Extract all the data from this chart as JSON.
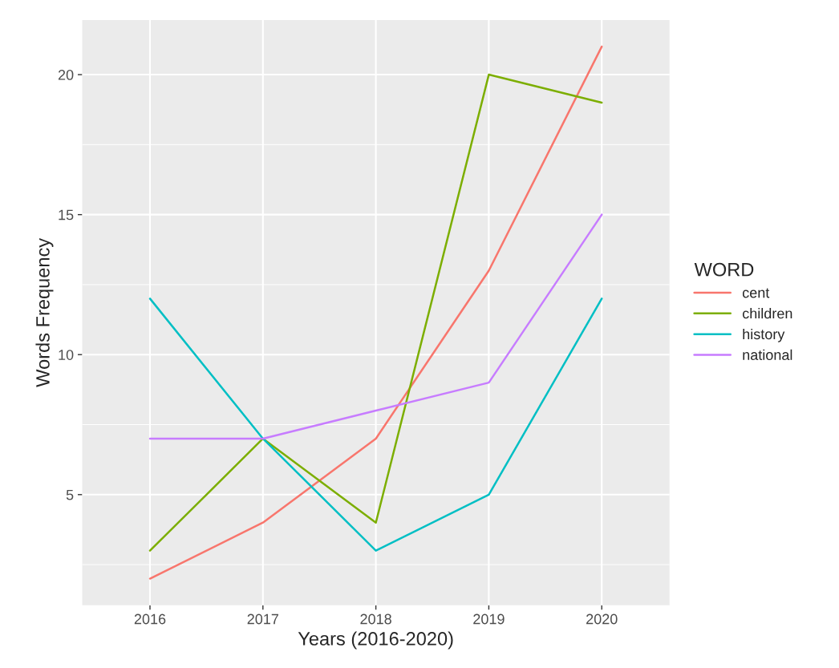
{
  "chart_data": {
    "type": "line",
    "xlabel": "Years (2016-2020)",
    "ylabel": "Words Frequency",
    "legend_title": "WORD",
    "x": [
      2016,
      2017,
      2018,
      2019,
      2020
    ],
    "series": [
      {
        "name": "cent",
        "color": "#f8766d",
        "values": [
          2,
          4,
          7,
          13,
          21
        ]
      },
      {
        "name": "children",
        "color": "#7cae00",
        "values": [
          3,
          7,
          4,
          20,
          19
        ]
      },
      {
        "name": "history",
        "color": "#00bfc4",
        "values": [
          12,
          7,
          3,
          5,
          12
        ]
      },
      {
        "name": "national",
        "color": "#c77cff",
        "values": [
          7,
          7,
          8,
          9,
          15
        ]
      }
    ],
    "xlim": [
      2015.4,
      2020.6
    ],
    "xticks": [
      2016,
      2017,
      2018,
      2019,
      2020
    ],
    "ylim": [
      1.05,
      21.95
    ],
    "yticks": [
      5,
      10,
      15,
      20
    ],
    "grid": true,
    "legend": "right",
    "marker": "none",
    "line_style": "solid"
  }
}
